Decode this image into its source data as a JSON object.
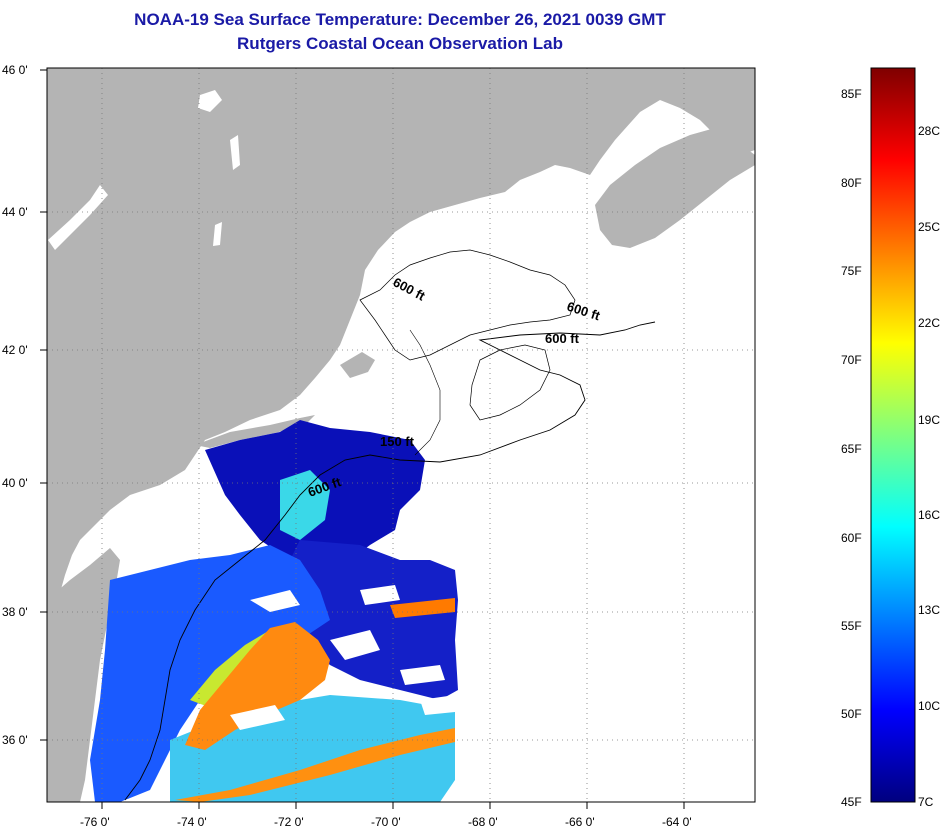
{
  "header": {
    "title": "NOAA-19 Sea Surface Temperature:  December 26, 2021 0039 GMT",
    "subtitle": "Rutgers Coastal Ocean Observation Lab"
  },
  "map": {
    "lat_labels": [
      "46 0'",
      "44 0'",
      "42 0'",
      "40 0'",
      "38 0'",
      "36 0'"
    ],
    "lon_labels": [
      "-76 0'",
      "-74 0'",
      "-72 0'",
      "-70 0'",
      "-68 0'",
      "-66 0'",
      "-64 0'"
    ],
    "contour_labels": [
      "600 ft",
      "600 ft",
      "600 ft",
      "150 ft",
      "600 ft"
    ],
    "colors": {
      "land": "#b4b4b4",
      "cloud_or_nodata": "#ffffff",
      "grid": "#888888"
    }
  },
  "colorbar": {
    "fahrenheit_labels": [
      "85F",
      "80F",
      "75F",
      "70F",
      "65F",
      "60F",
      "55F",
      "50F",
      "45F"
    ],
    "celsius_labels": [
      "28C",
      "25C",
      "22C",
      "19C",
      "16C",
      "13C",
      "10C",
      "7C"
    ],
    "gradient": [
      "#00007f",
      "#0000ff",
      "#007fff",
      "#00ffff",
      "#7fff7f",
      "#ffff00",
      "#ff7f00",
      "#ff0000",
      "#7f0000"
    ]
  }
}
